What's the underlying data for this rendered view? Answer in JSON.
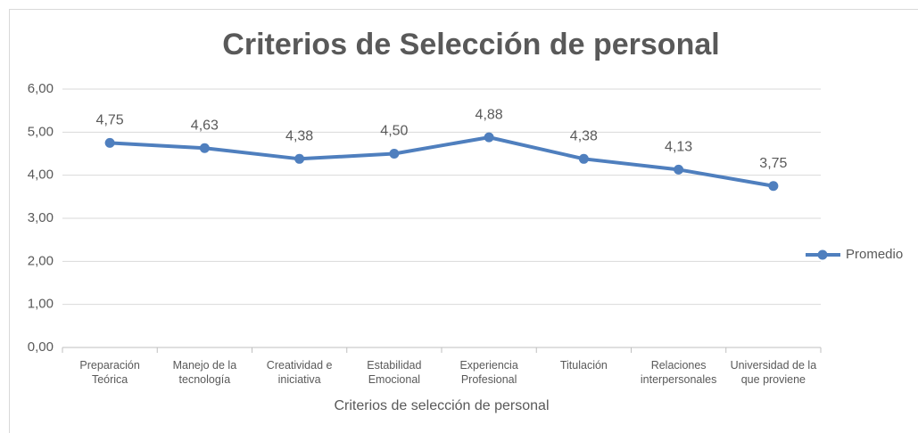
{
  "chart_data": {
    "type": "line",
    "title": "Criterios de Selección de personal",
    "x_label": "Criterios de selección de personal",
    "categories": [
      "Preparación Teórica",
      "Manejo de la tecnología",
      "Creatividad e iniciativa",
      "Estabilidad Emocional",
      "Experiencia Profesional",
      "Titulación",
      "Relaciones interpersonales",
      "Universidad de la que proviene"
    ],
    "series": [
      {
        "name": "Promedio",
        "color": "#4f7fbe",
        "values": [
          4.75,
          4.63,
          4.38,
          4.5,
          4.88,
          4.38,
          4.13,
          3.75
        ],
        "value_labels": [
          "4,75",
          "4,63",
          "4,38",
          "4,50",
          "4,88",
          "4,38",
          "4,13",
          "3,75"
        ]
      }
    ],
    "ylim": [
      0,
      6
    ],
    "yticks": [
      {
        "value": 0,
        "label": "0,00"
      },
      {
        "value": 1,
        "label": "1,00"
      },
      {
        "value": 2,
        "label": "2,00"
      },
      {
        "value": 3,
        "label": "3,00"
      },
      {
        "value": 4,
        "label": "4,00"
      },
      {
        "value": 5,
        "label": "5,00"
      },
      {
        "value": 6,
        "label": "6,00"
      }
    ],
    "grid": true,
    "legend": "right"
  }
}
